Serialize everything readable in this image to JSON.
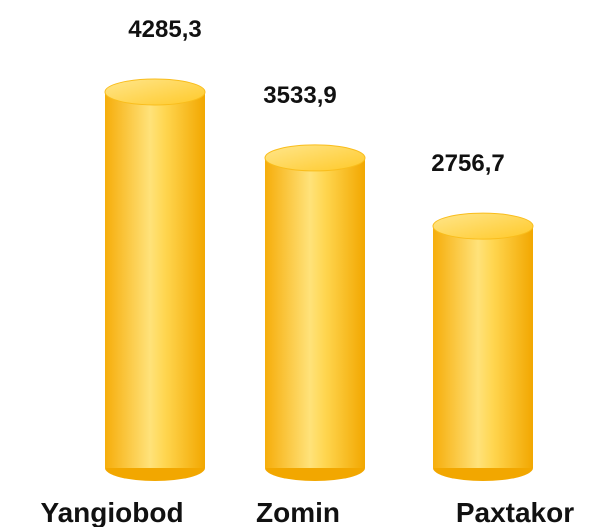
{
  "chart_data": {
    "type": "cylinder-bar",
    "categories": [
      "Yangiobod",
      "Zomin",
      "Paxtakor"
    ],
    "values": [
      4285.3,
      3533.9,
      2756.7
    ],
    "value_labels": [
      "4285,3",
      "3533,9",
      "2756,7"
    ],
    "color": "#f9bd1c"
  }
}
